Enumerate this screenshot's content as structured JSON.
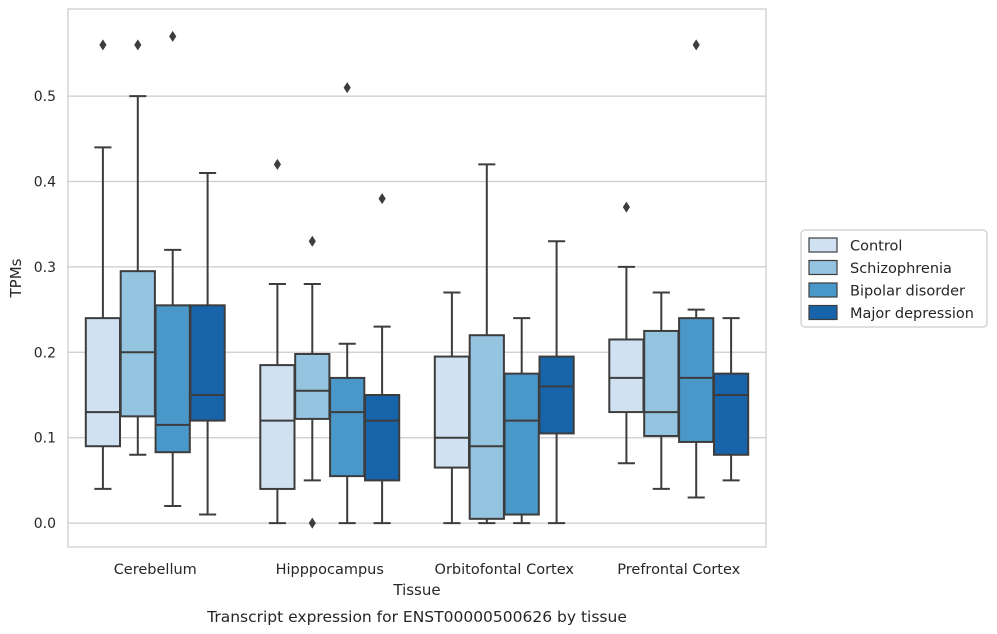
{
  "chart_data": {
    "type": "box",
    "xlabel": "Tissue",
    "ylabel": "TPMs",
    "caption": "Transcript expression for ENST00000500626 by tissue",
    "ylim": [
      -0.028,
      0.602
    ],
    "yticks": [
      "0.0",
      "0.1",
      "0.2",
      "0.3",
      "0.4",
      "0.5"
    ],
    "categories": [
      "Cerebellum",
      "Hipppocampus",
      "Orbitofontal Cortex",
      "Prefrontal Cortex"
    ],
    "grid": "horizontal",
    "legend_position": "right",
    "series": [
      {
        "name": "Control",
        "color": "#d0e1f2",
        "boxes": [
          {
            "whisker_low": 0.04,
            "q1": 0.09,
            "median": 0.13,
            "q3": 0.24,
            "whisker_high": 0.44,
            "outliers": [
              0.56
            ]
          },
          {
            "whisker_low": 0.0,
            "q1": 0.04,
            "median": 0.12,
            "q3": 0.185,
            "whisker_high": 0.28,
            "outliers": [
              0.42
            ]
          },
          {
            "whisker_low": 0.0,
            "q1": 0.065,
            "median": 0.1,
            "q3": 0.195,
            "whisker_high": 0.27,
            "outliers": []
          },
          {
            "whisker_low": 0.07,
            "q1": 0.13,
            "median": 0.17,
            "q3": 0.215,
            "whisker_high": 0.3,
            "outliers": [
              0.37
            ]
          }
        ]
      },
      {
        "name": "Schizophrenia",
        "color": "#94c4df",
        "boxes": [
          {
            "whisker_low": 0.08,
            "q1": 0.125,
            "median": 0.2,
            "q3": 0.295,
            "whisker_high": 0.5,
            "outliers": [
              0.56
            ]
          },
          {
            "whisker_low": 0.05,
            "q1": 0.122,
            "median": 0.155,
            "q3": 0.198,
            "whisker_high": 0.28,
            "outliers": [
              0.33,
              0.0
            ]
          },
          {
            "whisker_low": 0.0,
            "q1": 0.005,
            "median": 0.09,
            "q3": 0.22,
            "whisker_high": 0.42,
            "outliers": []
          },
          {
            "whisker_low": 0.04,
            "q1": 0.102,
            "median": 0.13,
            "q3": 0.225,
            "whisker_high": 0.27,
            "outliers": []
          }
        ]
      },
      {
        "name": "Bipolar disorder",
        "color": "#4a98c9",
        "boxes": [
          {
            "whisker_low": 0.02,
            "q1": 0.083,
            "median": 0.115,
            "q3": 0.255,
            "whisker_high": 0.32,
            "outliers": [
              0.57
            ]
          },
          {
            "whisker_low": 0.0,
            "q1": 0.055,
            "median": 0.13,
            "q3": 0.17,
            "whisker_high": 0.21,
            "outliers": [
              0.51
            ]
          },
          {
            "whisker_low": 0.0,
            "q1": 0.01,
            "median": 0.12,
            "q3": 0.175,
            "whisker_high": 0.24,
            "outliers": []
          },
          {
            "whisker_low": 0.03,
            "q1": 0.095,
            "median": 0.17,
            "q3": 0.24,
            "whisker_high": 0.25,
            "outliers": [
              0.56
            ]
          }
        ]
      },
      {
        "name": "Major depression",
        "color": "#1764ab",
        "boxes": [
          {
            "whisker_low": 0.01,
            "q1": 0.12,
            "median": 0.15,
            "q3": 0.255,
            "whisker_high": 0.41,
            "outliers": []
          },
          {
            "whisker_low": 0.0,
            "q1": 0.05,
            "median": 0.12,
            "q3": 0.15,
            "whisker_high": 0.23,
            "outliers": [
              0.38
            ]
          },
          {
            "whisker_low": 0.0,
            "q1": 0.105,
            "median": 0.16,
            "q3": 0.195,
            "whisker_high": 0.33,
            "outliers": []
          },
          {
            "whisker_low": 0.05,
            "q1": 0.08,
            "median": 0.15,
            "q3": 0.175,
            "whisker_high": 0.24,
            "outliers": []
          }
        ]
      }
    ]
  }
}
